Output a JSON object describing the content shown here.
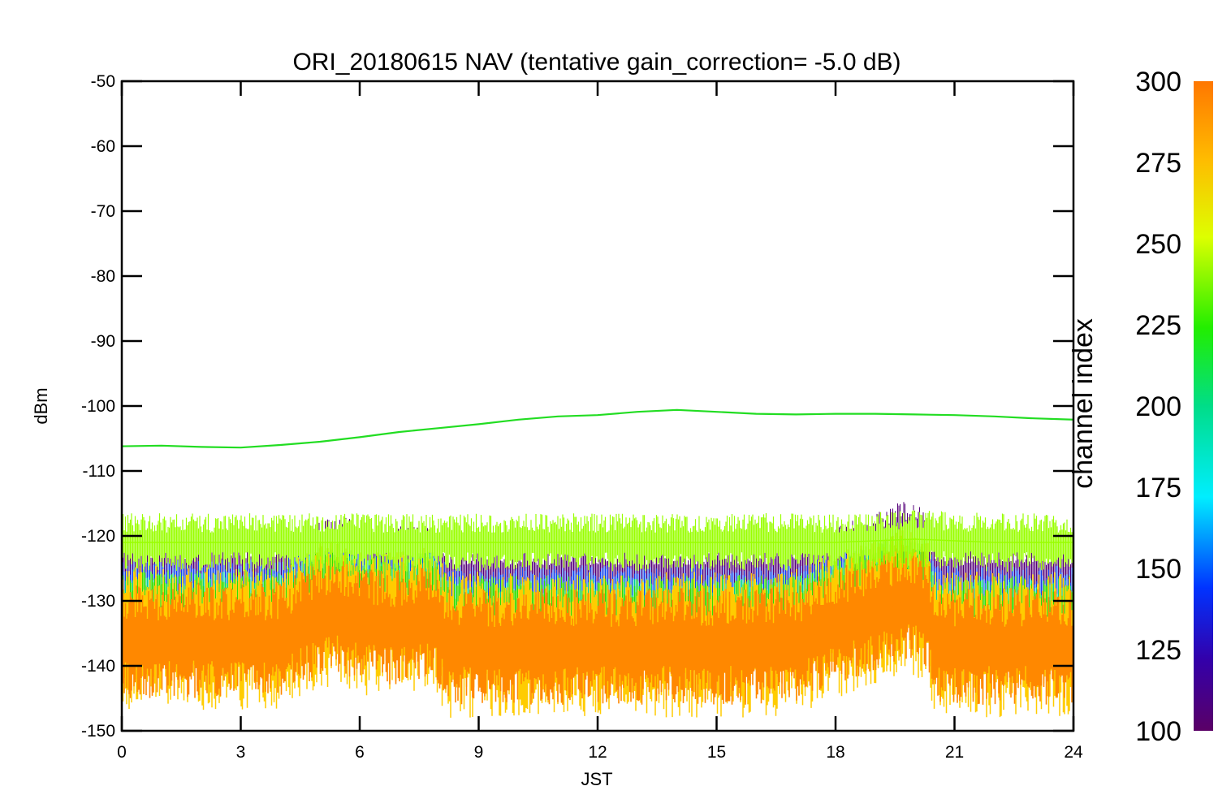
{
  "chart_data": {
    "type": "line",
    "title": "ORI_20180615 NAV (tentative gain_correction= -5.0 dB)",
    "xlabel": "JST",
    "ylabel": "dBm",
    "xlim": [
      0,
      24
    ],
    "ylim": [
      -150,
      -50
    ],
    "xticks": [
      0,
      3,
      6,
      9,
      12,
      15,
      18,
      21,
      24
    ],
    "yticks": [
      -50,
      -60,
      -70,
      -80,
      -90,
      -100,
      -110,
      -120,
      -130,
      -140,
      -150
    ],
    "colorbar": {
      "label": "channel index",
      "range": [
        100,
        300
      ],
      "ticks": [
        100,
        125,
        150,
        175,
        200,
        225,
        250,
        275,
        300
      ],
      "colormap": "rainbow (purple-blue-cyan-green-yellow-orange)"
    },
    "series": [
      {
        "color": "#22dd22",
        "x": [
          0,
          1,
          2,
          3,
          4,
          5,
          6,
          7,
          8,
          9,
          10,
          11,
          12,
          13,
          14,
          15,
          16,
          17,
          18,
          19,
          20,
          21,
          22,
          23,
          24
        ],
        "values": [
          -106.2,
          -106.1,
          -106.3,
          -106.4,
          -106.0,
          -105.5,
          -104.8,
          -104.0,
          -103.4,
          -102.8,
          -102.1,
          -101.6,
          -101.4,
          -100.9,
          -100.6,
          -100.9,
          -101.2,
          -101.3,
          -101.2,
          -101.2,
          -101.3,
          -101.4,
          -101.6,
          -101.9,
          -102.1
        ]
      },
      {
        "color": "#99ff00",
        "x": [
          0,
          2,
          4,
          6,
          8,
          10,
          12,
          14,
          16,
          18,
          20,
          22,
          24
        ],
        "values": [
          -121,
          -121,
          -121,
          -121,
          -121,
          -121,
          -121,
          -121,
          -121,
          -121,
          -120.5,
          -121,
          -121
        ]
      },
      {
        "color": "#ff8800",
        "x": [
          0,
          1,
          2,
          3,
          4,
          5,
          5.5,
          6,
          7,
          7.9,
          8.2,
          9,
          10,
          11,
          12,
          13,
          14,
          15,
          16,
          17,
          18,
          19,
          19.7,
          20.3,
          20.5,
          21,
          22,
          23,
          24
        ],
        "values": [
          -136,
          -136,
          -136,
          -136,
          -136,
          -132.5,
          -132,
          -133.5,
          -134,
          -133,
          -137,
          -137,
          -137,
          -137,
          -137,
          -137,
          -137,
          -137,
          -137,
          -136.5,
          -134,
          -132,
          -130,
          -131.5,
          -137,
          -137,
          -137,
          -137,
          -137
        ]
      }
    ]
  }
}
